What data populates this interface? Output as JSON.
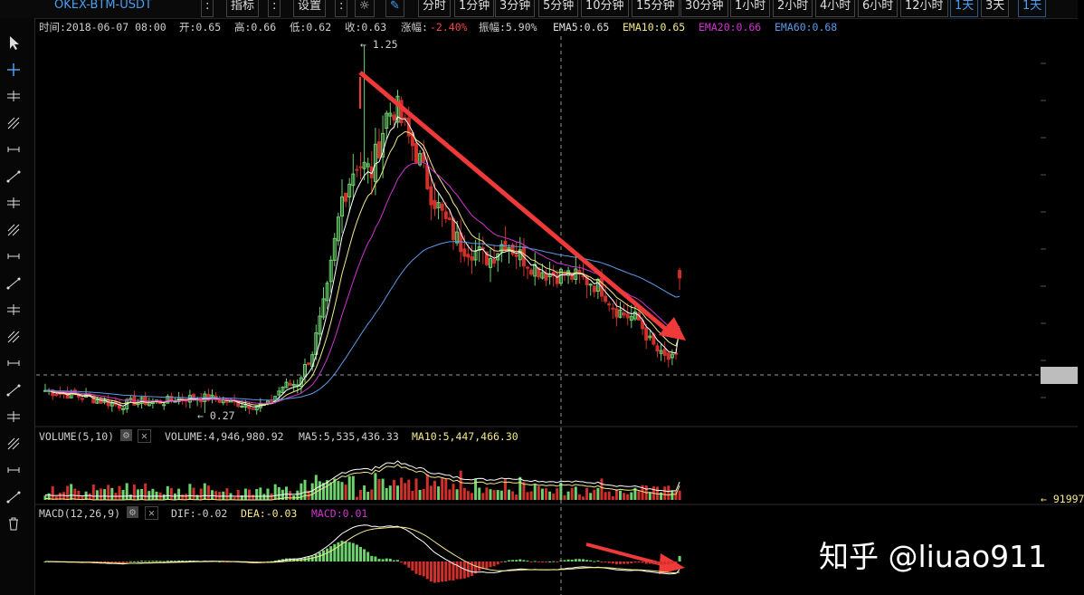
{
  "toolbar": {
    "symbol": "OKEX-BTM-USDT",
    "buttons": [
      "指标",
      "设置"
    ],
    "intervals": [
      "分时",
      "1分钟",
      "3分钟",
      "5分钟",
      "10分钟",
      "15分钟",
      "30分钟",
      "1小时",
      "2小时",
      "4小时",
      "6小时",
      "12小时",
      "1天",
      "3天",
      "1天"
    ],
    "active_interval": "1天"
  },
  "info": {
    "time": "时间:2018-06-07 08:00",
    "open": "开:0.65",
    "high": "高:0.66",
    "low": "低:0.62",
    "close": "收:0.63",
    "change_label": "涨幅:",
    "change_value": "-2.40%",
    "amplitude": "振幅:5.90%",
    "ema5": "EMA5:0.65",
    "ema10": "EMA10:0.65",
    "ema20": "EMA20:0.66",
    "ema60": "EMA60:0.68"
  },
  "annotations": {
    "high_marker": "1.25",
    "low_marker": "0.27",
    "volume_right_value": "91997"
  },
  "volume_header": {
    "name": "VOLUME(5,10)",
    "volume": "VOLUME:4,946,980.92",
    "ma5": "MA5:5,535,436.33",
    "ma10": "MA10:5,447,466.30"
  },
  "macd_header": {
    "name": "MACD(12,26,9)",
    "dif": "DIF:-0.02",
    "dea": "DEA:-0.03",
    "macd": "MACD:0.01"
  },
  "watermark": "知乎 @liuao911",
  "colors": {
    "up": "#6ed26e",
    "down": "#d0302b",
    "ema5": "#ffffff",
    "ema10": "#f5e98a",
    "ema20": "#d135d1",
    "ema60": "#5b9be8",
    "arrow": "#f03a3a"
  },
  "tools": [
    "cursor-icon",
    "crosshair-icon",
    "horizontal-ray-icon",
    "horizontal-line-icon",
    "horizontal-segment-icon",
    "vertical-line-icon",
    "price-range-icon",
    "parallel-lines-icon",
    "trend-line-icon",
    "ray-line-icon",
    "segment-icon",
    "arrow-line-icon",
    "parallel-channel-icon",
    "pitchfork-icon",
    "gann-fan-icon",
    "fib-fan-icon",
    "spiral-icon",
    "pattern-icon",
    "trash-icon"
  ],
  "chart_data": {
    "type": "candlestick",
    "price_range": {
      "high": 1.25,
      "low": 0.27,
      "last": 0.63
    },
    "ema_last": {
      "EMA5": 0.65,
      "EMA10": 0.65,
      "EMA20": 0.66,
      "EMA60": 0.68
    },
    "last_bar": {
      "date": "2018-06-07 08:00",
      "open": 0.65,
      "high": 0.66,
      "low": 0.62,
      "close": 0.63,
      "change_pct": -2.4,
      "amplitude_pct": 5.9
    },
    "volume": {
      "last": 4946980.92,
      "ma5": 5535436.33,
      "ma10": 5447466.3
    },
    "macd": {
      "dif": -0.02,
      "dea": -0.03,
      "macd": 0.01
    }
  }
}
